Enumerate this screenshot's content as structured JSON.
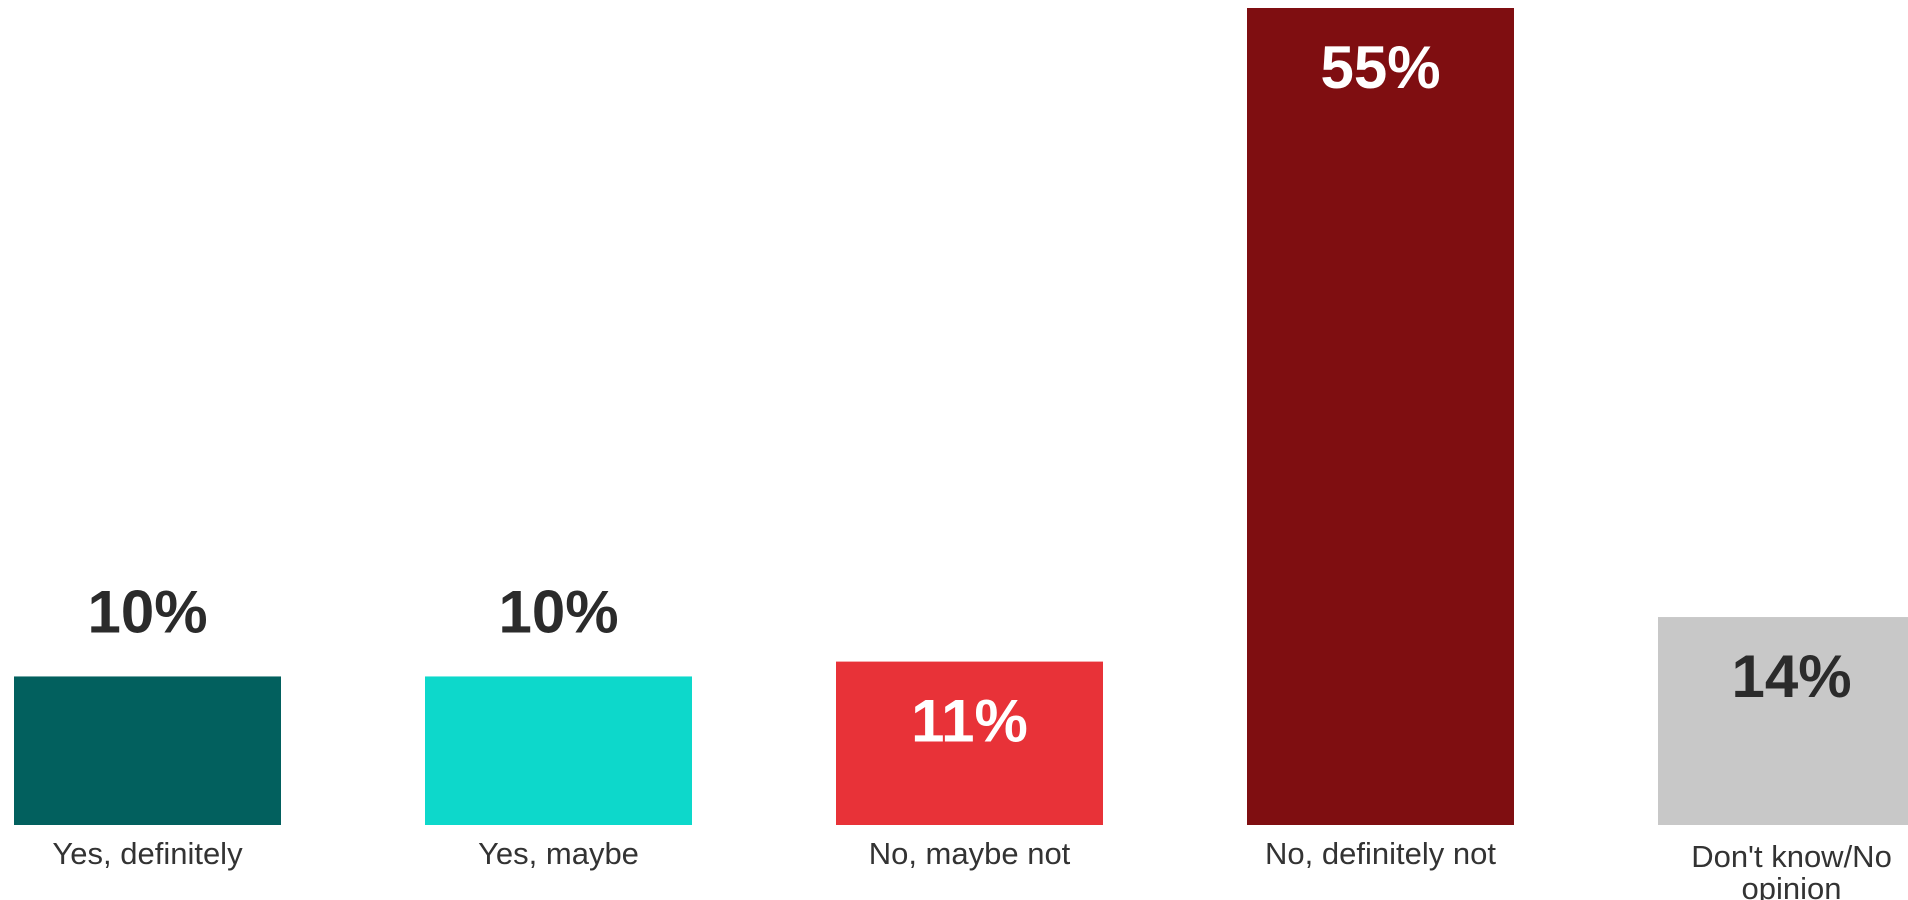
{
  "chart_data": {
    "type": "bar",
    "categories": [
      "Yes, definitely",
      "Yes, maybe",
      "No, maybe not",
      "No, definitely not",
      "Don't know/No opinion"
    ],
    "category_lines": [
      [
        "Yes, definitely"
      ],
      [
        "Yes, maybe"
      ],
      [
        "No, maybe not"
      ],
      [
        "No, definitely not"
      ],
      [
        "Don't know/No",
        "opinion"
      ]
    ],
    "values": [
      10,
      10,
      11,
      55,
      14
    ],
    "value_labels": [
      "10%",
      "10%",
      "11%",
      "55%",
      "14%"
    ],
    "colors": [
      "#02605e",
      "#0dd8cb",
      "#e83238",
      "#7f0e11",
      "#c8c8c8"
    ],
    "label_colors": [
      "#2b2b2b",
      "#2b2b2b",
      "#ffffff",
      "#ffffff",
      "#2b2b2b"
    ],
    "label_position": [
      "outside",
      "outside",
      "inside",
      "inside",
      "inside"
    ],
    "ylim": [
      0,
      55
    ],
    "grid": false,
    "legend": "none"
  }
}
